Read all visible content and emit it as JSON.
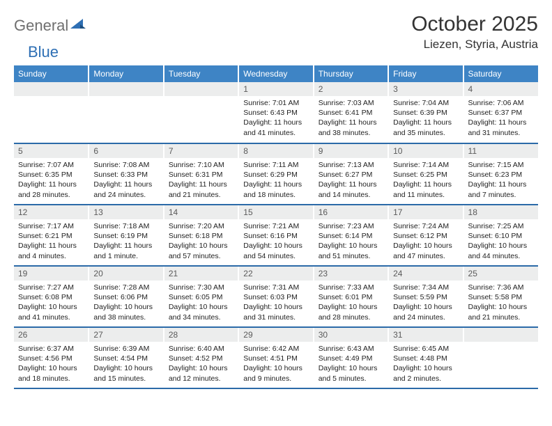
{
  "brand": {
    "part1": "General",
    "part2": "Blue"
  },
  "title": "October 2025",
  "location": "Liezen, Styria, Austria",
  "colors": {
    "header_bg": "#3e84c5",
    "row_border": "#2b6aa8",
    "daynum_bg": "#eceded",
    "logo_gray": "#6f6f6f",
    "logo_blue": "#2e6fb4"
  },
  "weekdays": [
    "Sunday",
    "Monday",
    "Tuesday",
    "Wednesday",
    "Thursday",
    "Friday",
    "Saturday"
  ],
  "weeks": [
    [
      null,
      null,
      null,
      {
        "n": "1",
        "sunrise": "7:01 AM",
        "sunset": "6:43 PM",
        "daylight": "11 hours and 41 minutes."
      },
      {
        "n": "2",
        "sunrise": "7:03 AM",
        "sunset": "6:41 PM",
        "daylight": "11 hours and 38 minutes."
      },
      {
        "n": "3",
        "sunrise": "7:04 AM",
        "sunset": "6:39 PM",
        "daylight": "11 hours and 35 minutes."
      },
      {
        "n": "4",
        "sunrise": "7:06 AM",
        "sunset": "6:37 PM",
        "daylight": "11 hours and 31 minutes."
      }
    ],
    [
      {
        "n": "5",
        "sunrise": "7:07 AM",
        "sunset": "6:35 PM",
        "daylight": "11 hours and 28 minutes."
      },
      {
        "n": "6",
        "sunrise": "7:08 AM",
        "sunset": "6:33 PM",
        "daylight": "11 hours and 24 minutes."
      },
      {
        "n": "7",
        "sunrise": "7:10 AM",
        "sunset": "6:31 PM",
        "daylight": "11 hours and 21 minutes."
      },
      {
        "n": "8",
        "sunrise": "7:11 AM",
        "sunset": "6:29 PM",
        "daylight": "11 hours and 18 minutes."
      },
      {
        "n": "9",
        "sunrise": "7:13 AM",
        "sunset": "6:27 PM",
        "daylight": "11 hours and 14 minutes."
      },
      {
        "n": "10",
        "sunrise": "7:14 AM",
        "sunset": "6:25 PM",
        "daylight": "11 hours and 11 minutes."
      },
      {
        "n": "11",
        "sunrise": "7:15 AM",
        "sunset": "6:23 PM",
        "daylight": "11 hours and 7 minutes."
      }
    ],
    [
      {
        "n": "12",
        "sunrise": "7:17 AM",
        "sunset": "6:21 PM",
        "daylight": "11 hours and 4 minutes."
      },
      {
        "n": "13",
        "sunrise": "7:18 AM",
        "sunset": "6:19 PM",
        "daylight": "11 hours and 1 minute."
      },
      {
        "n": "14",
        "sunrise": "7:20 AM",
        "sunset": "6:18 PM",
        "daylight": "10 hours and 57 minutes."
      },
      {
        "n": "15",
        "sunrise": "7:21 AM",
        "sunset": "6:16 PM",
        "daylight": "10 hours and 54 minutes."
      },
      {
        "n": "16",
        "sunrise": "7:23 AM",
        "sunset": "6:14 PM",
        "daylight": "10 hours and 51 minutes."
      },
      {
        "n": "17",
        "sunrise": "7:24 AM",
        "sunset": "6:12 PM",
        "daylight": "10 hours and 47 minutes."
      },
      {
        "n": "18",
        "sunrise": "7:25 AM",
        "sunset": "6:10 PM",
        "daylight": "10 hours and 44 minutes."
      }
    ],
    [
      {
        "n": "19",
        "sunrise": "7:27 AM",
        "sunset": "6:08 PM",
        "daylight": "10 hours and 41 minutes."
      },
      {
        "n": "20",
        "sunrise": "7:28 AM",
        "sunset": "6:06 PM",
        "daylight": "10 hours and 38 minutes."
      },
      {
        "n": "21",
        "sunrise": "7:30 AM",
        "sunset": "6:05 PM",
        "daylight": "10 hours and 34 minutes."
      },
      {
        "n": "22",
        "sunrise": "7:31 AM",
        "sunset": "6:03 PM",
        "daylight": "10 hours and 31 minutes."
      },
      {
        "n": "23",
        "sunrise": "7:33 AM",
        "sunset": "6:01 PM",
        "daylight": "10 hours and 28 minutes."
      },
      {
        "n": "24",
        "sunrise": "7:34 AM",
        "sunset": "5:59 PM",
        "daylight": "10 hours and 24 minutes."
      },
      {
        "n": "25",
        "sunrise": "7:36 AM",
        "sunset": "5:58 PM",
        "daylight": "10 hours and 21 minutes."
      }
    ],
    [
      {
        "n": "26",
        "sunrise": "6:37 AM",
        "sunset": "4:56 PM",
        "daylight": "10 hours and 18 minutes."
      },
      {
        "n": "27",
        "sunrise": "6:39 AM",
        "sunset": "4:54 PM",
        "daylight": "10 hours and 15 minutes."
      },
      {
        "n": "28",
        "sunrise": "6:40 AM",
        "sunset": "4:52 PM",
        "daylight": "10 hours and 12 minutes."
      },
      {
        "n": "29",
        "sunrise": "6:42 AM",
        "sunset": "4:51 PM",
        "daylight": "10 hours and 9 minutes."
      },
      {
        "n": "30",
        "sunrise": "6:43 AM",
        "sunset": "4:49 PM",
        "daylight": "10 hours and 5 minutes."
      },
      {
        "n": "31",
        "sunrise": "6:45 AM",
        "sunset": "4:48 PM",
        "daylight": "10 hours and 2 minutes."
      },
      null
    ]
  ],
  "labels": {
    "sunrise": "Sunrise:",
    "sunset": "Sunset:",
    "daylight": "Daylight:"
  }
}
